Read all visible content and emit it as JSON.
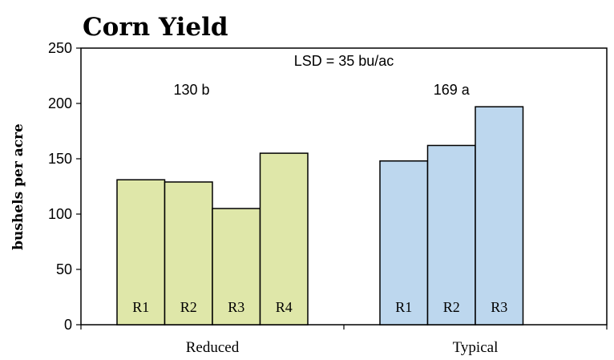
{
  "chart_data": {
    "type": "bar",
    "title": "Corn Yield",
    "xlabel": "",
    "ylabel": "bushels per acre",
    "ylim": [
      0,
      250
    ],
    "yticks": [
      0,
      50,
      100,
      150,
      200,
      250
    ],
    "grid": false,
    "legend": "none",
    "annotation": "LSD = 35 bu/ac",
    "groups": [
      {
        "name": "Reduced",
        "color": "#dfe7a9",
        "mean_label": "130 b",
        "bars": [
          {
            "label": "R1",
            "value": 131
          },
          {
            "label": "R2",
            "value": 129
          },
          {
            "label": "R3",
            "value": 105
          },
          {
            "label": "R4",
            "value": 155
          }
        ]
      },
      {
        "name": "Typical",
        "color": "#bdd7ee",
        "mean_label": "169 a",
        "bars": [
          {
            "label": "R1",
            "value": 148
          },
          {
            "label": "R2",
            "value": 162
          },
          {
            "label": "R3",
            "value": 197
          }
        ]
      }
    ]
  }
}
